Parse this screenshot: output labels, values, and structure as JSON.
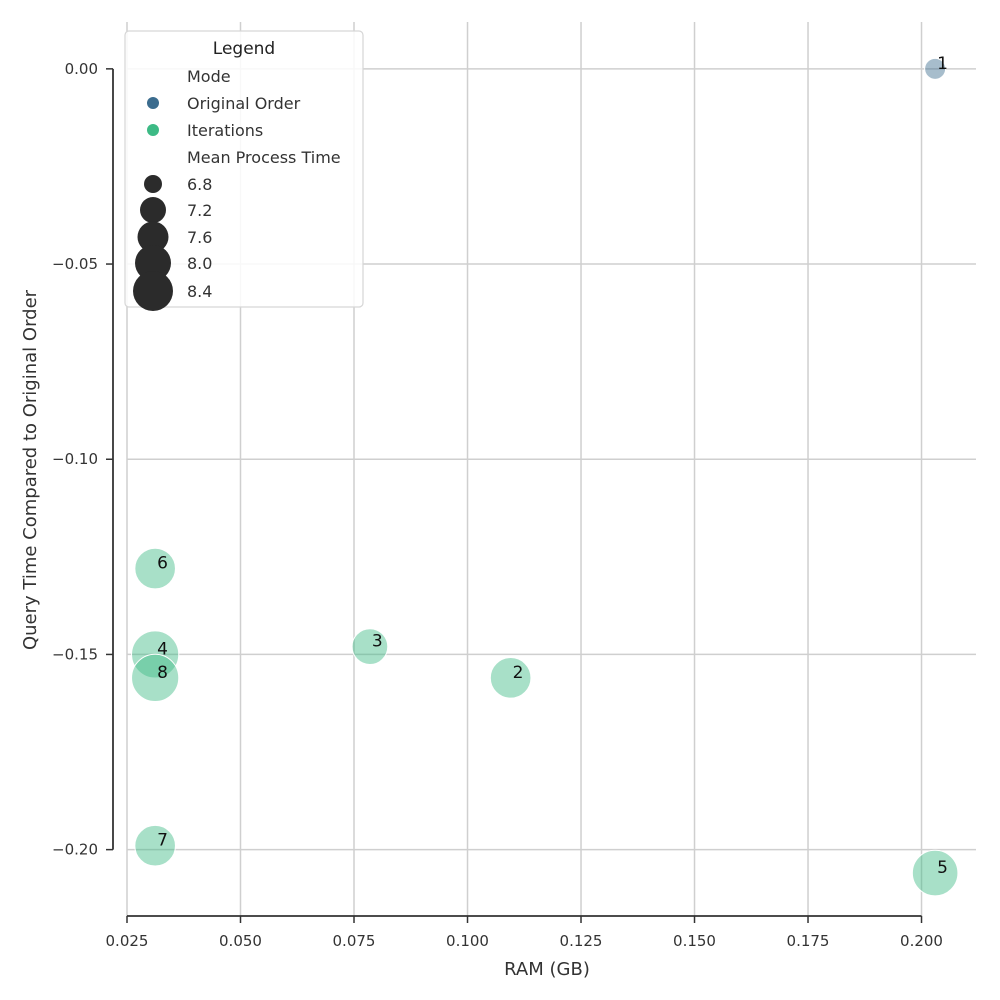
{
  "chart_data": {
    "type": "scatter",
    "title": "",
    "xlabel": "RAM (GB)",
    "ylabel": "Query Time Compared to Original Order",
    "xlim": [
      0.025,
      0.212
    ],
    "ylim": [
      -0.217,
      0.012
    ],
    "xticks": [
      0.025,
      0.05,
      0.075,
      0.1,
      0.125,
      0.15,
      0.175,
      0.2
    ],
    "xtick_labels": [
      "0.025",
      "0.050",
      "0.075",
      "0.100",
      "0.125",
      "0.150",
      "0.175",
      "0.200"
    ],
    "yticks": [
      0.0,
      -0.05,
      -0.1,
      -0.15,
      -0.2
    ],
    "ytick_labels": [
      "0.00",
      "−0.05",
      "−0.10",
      "−0.15",
      "−0.20"
    ],
    "grid": true,
    "legend": {
      "title": "Legend",
      "placement": "top-left",
      "hue_title": "Mode",
      "hue_entries": [
        {
          "label": "Original Order",
          "color": "#3b6c8e"
        },
        {
          "label": "Iterations",
          "color": "#3dba85"
        }
      ],
      "size_title": "Mean Process Time",
      "size_entries": [
        {
          "label": "6.8",
          "value": 6.8
        },
        {
          "label": "7.2",
          "value": 7.2
        },
        {
          "label": "7.6",
          "value": 7.6
        },
        {
          "label": "8.0",
          "value": 8.0
        },
        {
          "label": "8.4",
          "value": 8.4
        }
      ]
    },
    "series": [
      {
        "name": "Original Order",
        "color": "#3b6c8e",
        "points": [
          {
            "label": "1",
            "x": 0.203,
            "y": 0.0,
            "size": 6.4
          }
        ]
      },
      {
        "name": "Iterations",
        "color": "#3dba85",
        "points": [
          {
            "label": "2",
            "x": 0.1095,
            "y": -0.156,
            "size": 7.6
          },
          {
            "label": "3",
            "x": 0.0785,
            "y": -0.148,
            "size": 7.3
          },
          {
            "label": "4",
            "x": 0.0312,
            "y": -0.15,
            "size": 8.0
          },
          {
            "label": "5",
            "x": 0.203,
            "y": -0.206,
            "size": 7.9
          },
          {
            "label": "6",
            "x": 0.0312,
            "y": -0.128,
            "size": 7.6
          },
          {
            "label": "7",
            "x": 0.0312,
            "y": -0.199,
            "size": 7.6
          },
          {
            "label": "8",
            "x": 0.0312,
            "y": -0.156,
            "size": 8.0
          }
        ]
      }
    ]
  }
}
